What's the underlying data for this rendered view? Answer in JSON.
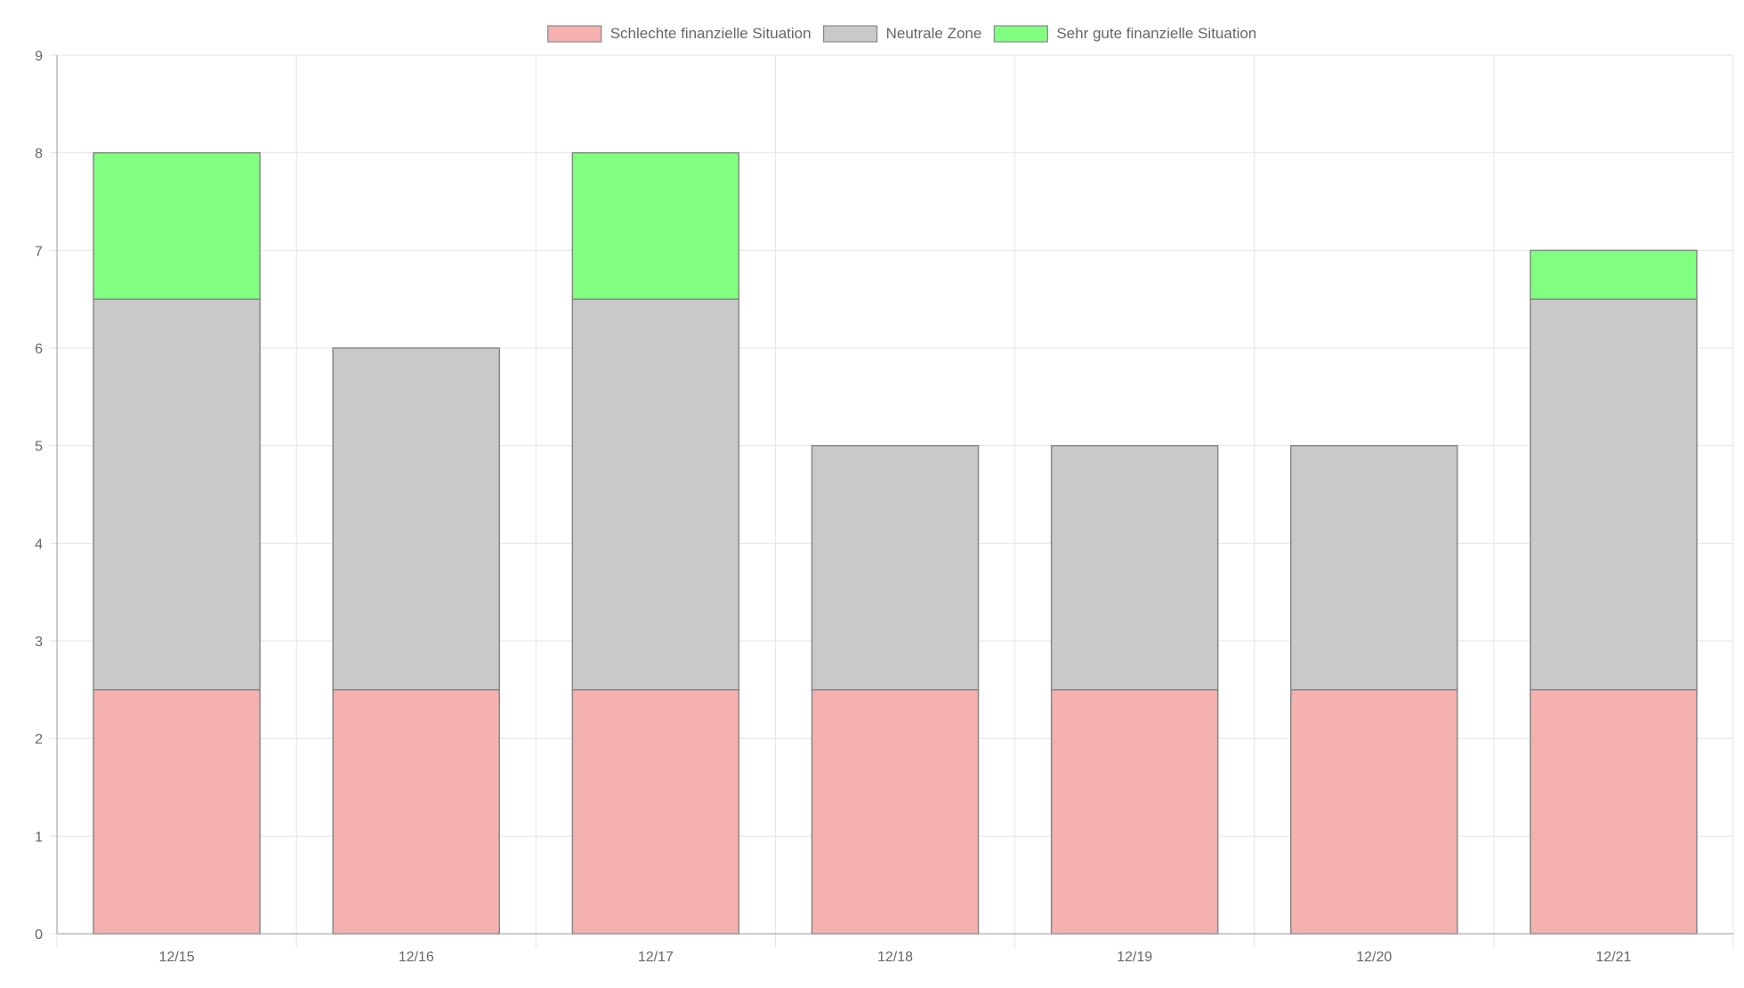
{
  "chart_data": {
    "type": "bar",
    "stacked": true,
    "categories": [
      "12/15",
      "12/16",
      "12/17",
      "12/18",
      "12/19",
      "12/20",
      "12/21"
    ],
    "series": [
      {
        "name": "Schlechte finanzielle Situation",
        "color": "#f5b0b0",
        "values": [
          2.5,
          2.5,
          2.5,
          2.5,
          2.5,
          2.5,
          2.5
        ]
      },
      {
        "name": "Neutrale Zone",
        "color": "#c9c9c9",
        "values": [
          4,
          3.5,
          4,
          2.5,
          2.5,
          2.5,
          4
        ]
      },
      {
        "name": "Sehr gute finanzielle Situation",
        "color": "#80ff80",
        "values": [
          1.5,
          0,
          1.5,
          0,
          0,
          0,
          0.5
        ]
      }
    ],
    "ylim": [
      0,
      9
    ],
    "y_ticks": [
      0,
      1,
      2,
      3,
      4,
      5,
      6,
      7,
      8,
      9
    ],
    "grid": true,
    "legend_position": "top",
    "bar_border_color": "#888888",
    "grid_color": "#e5e5e5",
    "axis_color": "#999999"
  }
}
